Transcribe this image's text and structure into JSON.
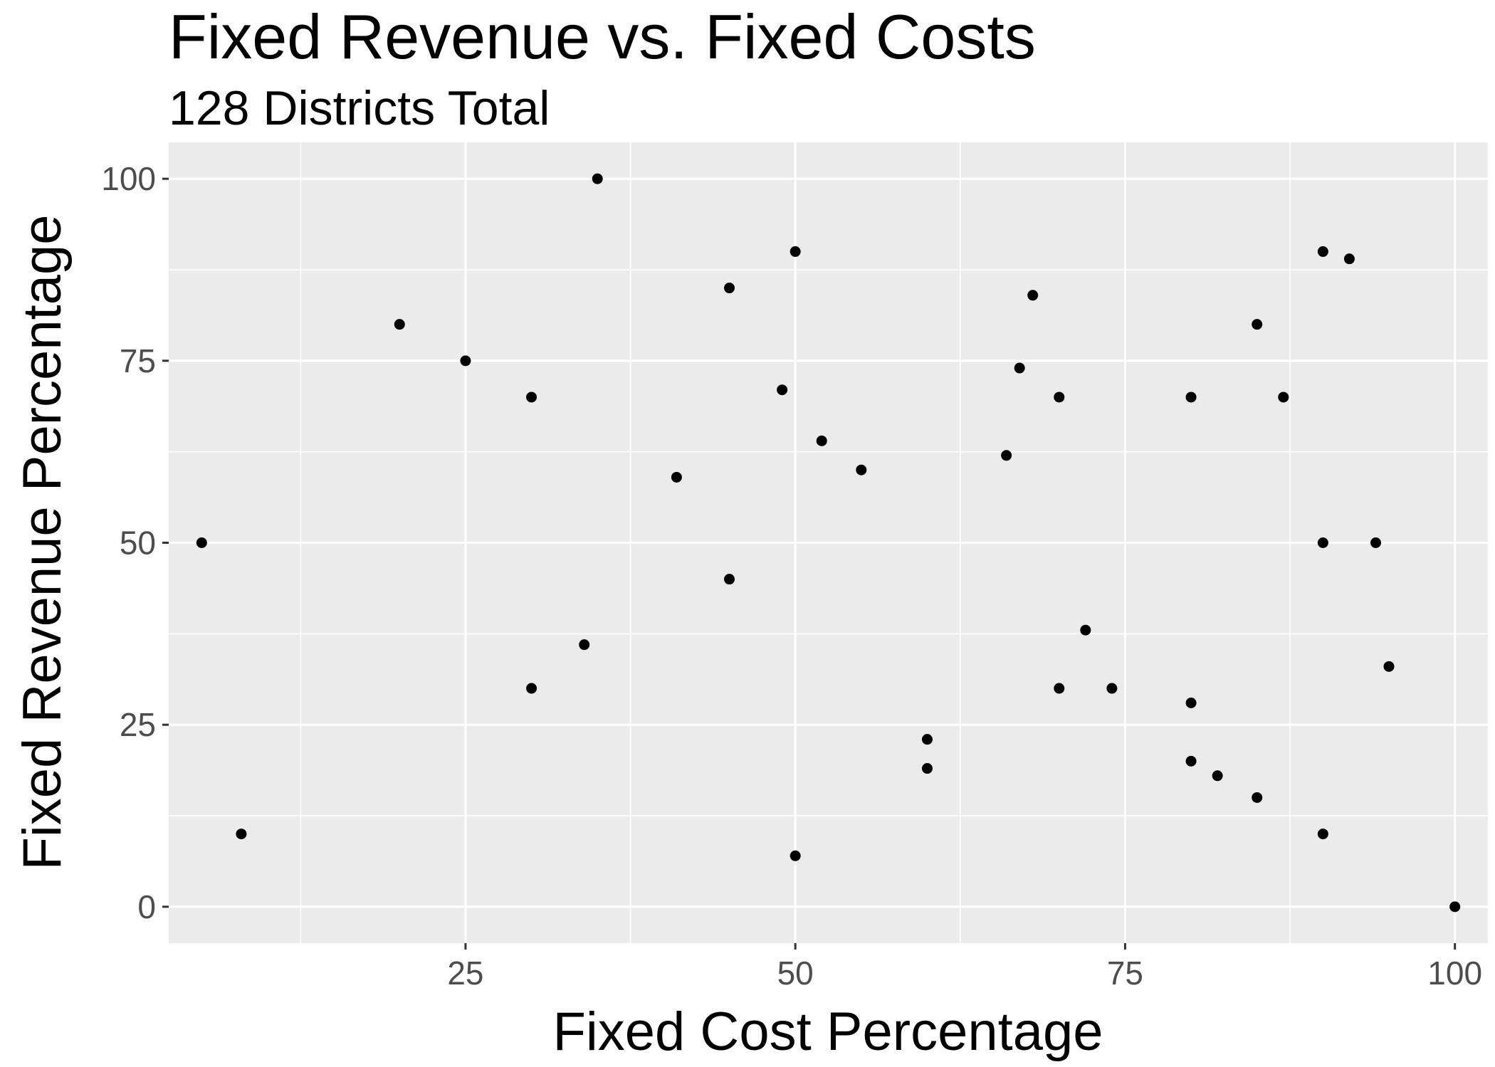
{
  "chart_data": {
    "type": "scatter",
    "title": "Fixed Revenue vs. Fixed Costs",
    "subtitle": "128 Districts Total",
    "xlabel": "Fixed Cost Percentage",
    "ylabel": "Fixed Revenue Percentage",
    "xlim": [
      2.5,
      102.5
    ],
    "ylim": [
      -5,
      105
    ],
    "xticks": [
      25,
      50,
      75,
      100
    ],
    "yticks": [
      0,
      25,
      50,
      75,
      100
    ],
    "x_minor": [
      12.5,
      37.5,
      62.5,
      87.5
    ],
    "y_minor": [
      12.5,
      37.5,
      62.5,
      87.5
    ],
    "grid": true,
    "background": "#ebebeb",
    "point_color": "#000000",
    "points": [
      {
        "x": 5,
        "y": 50
      },
      {
        "x": 8,
        "y": 10
      },
      {
        "x": 20,
        "y": 80
      },
      {
        "x": 25,
        "y": 75
      },
      {
        "x": 30,
        "y": 70
      },
      {
        "x": 30,
        "y": 30
      },
      {
        "x": 34,
        "y": 36
      },
      {
        "x": 35,
        "y": 100
      },
      {
        "x": 41,
        "y": 59
      },
      {
        "x": 45,
        "y": 85
      },
      {
        "x": 45,
        "y": 45
      },
      {
        "x": 49,
        "y": 71
      },
      {
        "x": 50,
        "y": 90
      },
      {
        "x": 50,
        "y": 7
      },
      {
        "x": 52,
        "y": 64
      },
      {
        "x": 55,
        "y": 60
      },
      {
        "x": 60,
        "y": 23
      },
      {
        "x": 60,
        "y": 19
      },
      {
        "x": 66,
        "y": 62
      },
      {
        "x": 67,
        "y": 74
      },
      {
        "x": 68,
        "y": 84
      },
      {
        "x": 70,
        "y": 70
      },
      {
        "x": 70,
        "y": 30
      },
      {
        "x": 72,
        "y": 38
      },
      {
        "x": 74,
        "y": 30
      },
      {
        "x": 80,
        "y": 70
      },
      {
        "x": 80,
        "y": 28
      },
      {
        "x": 80,
        "y": 20
      },
      {
        "x": 82,
        "y": 18
      },
      {
        "x": 85,
        "y": 80
      },
      {
        "x": 85,
        "y": 15
      },
      {
        "x": 87,
        "y": 70
      },
      {
        "x": 90,
        "y": 90
      },
      {
        "x": 90,
        "y": 50
      },
      {
        "x": 90,
        "y": 10
      },
      {
        "x": 92,
        "y": 89
      },
      {
        "x": 94,
        "y": 50
      },
      {
        "x": 95,
        "y": 33
      },
      {
        "x": 100,
        "y": 0
      }
    ]
  }
}
